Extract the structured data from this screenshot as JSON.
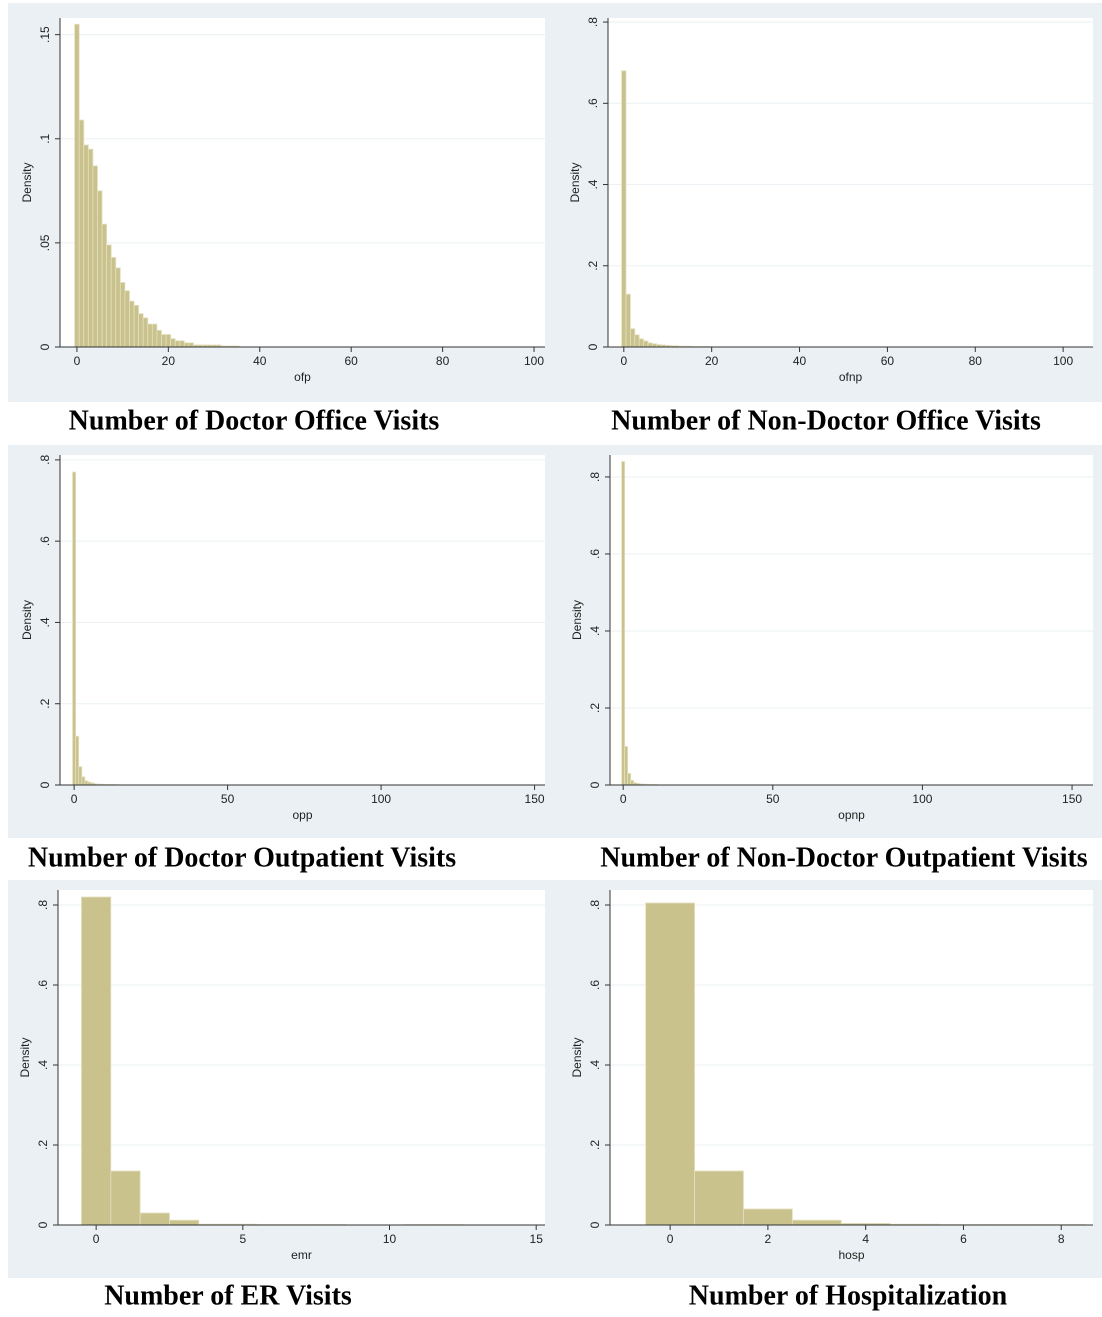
{
  "chart_data": [
    {
      "type": "histogram",
      "caption": "Number of Doctor Office Visits",
      "xlabel": "ofp",
      "ylabel": "Density",
      "color": "#c9c28c",
      "bins": [
        -0.5,
        0.5,
        1.5,
        2.5,
        3.5,
        4.5,
        5.5,
        6.5,
        7.5,
        8.5,
        9.5,
        10.5,
        11.5,
        12.5,
        13.5,
        14.5,
        15.5,
        16.5,
        17.5,
        18.5,
        19.5,
        20.5,
        21.5,
        22.5,
        23.5,
        24.5,
        25.5,
        26.5,
        27.5,
        28.5,
        29.5,
        30.5,
        31.5,
        32.5,
        33.5,
        34.5,
        35.5
      ],
      "values": [
        0.155,
        0.109,
        0.097,
        0.095,
        0.087,
        0.075,
        0.059,
        0.049,
        0.043,
        0.038,
        0.031,
        0.027,
        0.022,
        0.02,
        0.016,
        0.014,
        0.011,
        0.011,
        0.008,
        0.006,
        0.006,
        0.004,
        0.003,
        0.003,
        0.002,
        0.002,
        0.001,
        0.001,
        0.001,
        0.001,
        0.001,
        0.001,
        0.0005,
        0.0005,
        0.0005,
        0.0005
      ],
      "xlim": [
        -3.7,
        102.4
      ],
      "xticks": [
        0,
        20,
        40,
        60,
        80,
        100
      ],
      "ylim": [
        0,
        0.158
      ],
      "yticks": [
        0,
        {
          "value": 0.05,
          "label": ".05"
        },
        {
          "value": 0.1,
          "label": ".1"
        },
        {
          "value": 0.15,
          "label": ".15"
        }
      ],
      "grid": true
    },
    {
      "type": "histogram",
      "caption": "Number of Non-Doctor Office Visits",
      "xlabel": "ofnp",
      "ylabel": "Density",
      "color": "#c9c28c",
      "bins": [
        -0.5,
        0.5,
        1.5,
        2.5,
        3.5,
        4.5,
        5.5,
        6.5,
        7.5,
        8.5,
        9.5,
        10.5,
        11.5,
        12.5,
        13.5,
        14.5,
        15.5,
        16.5,
        17.5,
        18.5,
        19.5
      ],
      "values": [
        0.68,
        0.13,
        0.045,
        0.03,
        0.02,
        0.015,
        0.01,
        0.008,
        0.006,
        0.005,
        0.004,
        0.003,
        0.003,
        0.002,
        0.002,
        0.002,
        0.001,
        0.001,
        0.001,
        0.001
      ],
      "xlim": [
        -3.6,
        106.8
      ],
      "xticks": [
        0,
        20,
        40,
        60,
        80,
        100
      ],
      "ylim": [
        0,
        0.81
      ],
      "yticks": [
        0,
        {
          "value": 0.2,
          "label": ".2"
        },
        {
          "value": 0.4,
          "label": ".4"
        },
        {
          "value": 0.6,
          "label": ".6"
        },
        {
          "value": 0.8,
          "label": ".8"
        }
      ],
      "grid": true
    },
    {
      "type": "histogram",
      "caption": "Number of Doctor Outpatient Visits",
      "xlabel": "opp",
      "ylabel": "Density",
      "color": "#c9c28c",
      "bins": [
        -0.5,
        0.5,
        1.5,
        2.5,
        3.5,
        4.5,
        5.5,
        6.5,
        7.5,
        8.5,
        9.5,
        10.5,
        11.5,
        12.5,
        13.5,
        14.5
      ],
      "values": [
        0.77,
        0.12,
        0.045,
        0.02,
        0.01,
        0.007,
        0.005,
        0.003,
        0.002,
        0.002,
        0.001,
        0.001,
        0.001,
        0.001,
        0.001
      ],
      "xlim": [
        -4.6,
        153.4
      ],
      "xticks": [
        0,
        50,
        100,
        150
      ],
      "ylim": [
        0,
        0.812
      ],
      "yticks": [
        0,
        {
          "value": 0.2,
          "label": ".2"
        },
        {
          "value": 0.4,
          "label": ".4"
        },
        {
          "value": 0.6,
          "label": ".6"
        },
        {
          "value": 0.8,
          "label": ".8"
        }
      ],
      "grid": true
    },
    {
      "type": "histogram",
      "caption": "Number of Non-Doctor Outpatient Visits",
      "xlabel": "opnp",
      "ylabel": "Density",
      "color": "#c9c28c",
      "bins": [
        -0.5,
        0.5,
        1.5,
        2.5,
        3.5,
        4.5,
        5.5,
        6.5,
        7.5,
        8.5,
        9.5,
        10.5,
        11.5
      ],
      "values": [
        0.84,
        0.1,
        0.03,
        0.012,
        0.006,
        0.004,
        0.003,
        0.002,
        0.002,
        0.001,
        0.001,
        0.001
      ],
      "xlim": [
        -4.4,
        157
      ],
      "xticks": [
        0,
        50,
        100,
        150
      ],
      "ylim": [
        0,
        0.857
      ],
      "yticks": [
        0,
        {
          "value": 0.2,
          "label": ".2"
        },
        {
          "value": 0.4,
          "label": ".4"
        },
        {
          "value": 0.6,
          "label": ".6"
        },
        {
          "value": 0.8,
          "label": ".8"
        }
      ],
      "grid": true
    },
    {
      "type": "histogram",
      "caption": "Number of ER Visits",
      "xlabel": "emr",
      "ylabel": "Density",
      "color": "#c9c28c",
      "bins": [
        -0.5,
        0.5,
        1.5,
        2.5,
        3.5,
        4.5,
        5.5,
        6.5,
        7.5,
        8.5,
        9.5,
        10.5,
        11.5,
        12.5
      ],
      "values": [
        0.82,
        0.135,
        0.03,
        0.012,
        0.002,
        0.002,
        0.001,
        0.001,
        0.001,
        0,
        0,
        0.001,
        0.001
      ],
      "xlim": [
        -1.3,
        15.3
      ],
      "xticks": [
        0,
        5,
        10,
        15
      ],
      "ylim": [
        0,
        0.8375
      ],
      "yticks": [
        0,
        {
          "value": 0.2,
          "label": ".2"
        },
        {
          "value": 0.4,
          "label": ".4"
        },
        {
          "value": 0.6,
          "label": ".6"
        },
        {
          "value": 0.8,
          "label": ".8"
        }
      ],
      "grid": true
    },
    {
      "type": "histogram",
      "caption": "Number of Hospitalization",
      "xlabel": "hosp",
      "ylabel": "Density",
      "color": "#c9c28c",
      "bins": [
        -0.5,
        0.5,
        1.5,
        2.5,
        3.5,
        4.5,
        5.5,
        6.5,
        7.5,
        8.5
      ],
      "values": [
        0.805,
        0.135,
        0.04,
        0.012,
        0.004,
        0.002,
        0.001,
        0.001,
        0.001
      ],
      "xlim": [
        -1.23,
        8.65
      ],
      "xticks": [
        0,
        2,
        4,
        6,
        8
      ],
      "ylim": [
        0,
        0.8375
      ],
      "yticks": [
        0,
        {
          "value": 0.2,
          "label": ".2"
        },
        {
          "value": 0.4,
          "label": ".4"
        },
        {
          "value": 0.6,
          "label": ".6"
        },
        {
          "value": 0.8,
          "label": ".8"
        }
      ],
      "grid": true
    }
  ]
}
